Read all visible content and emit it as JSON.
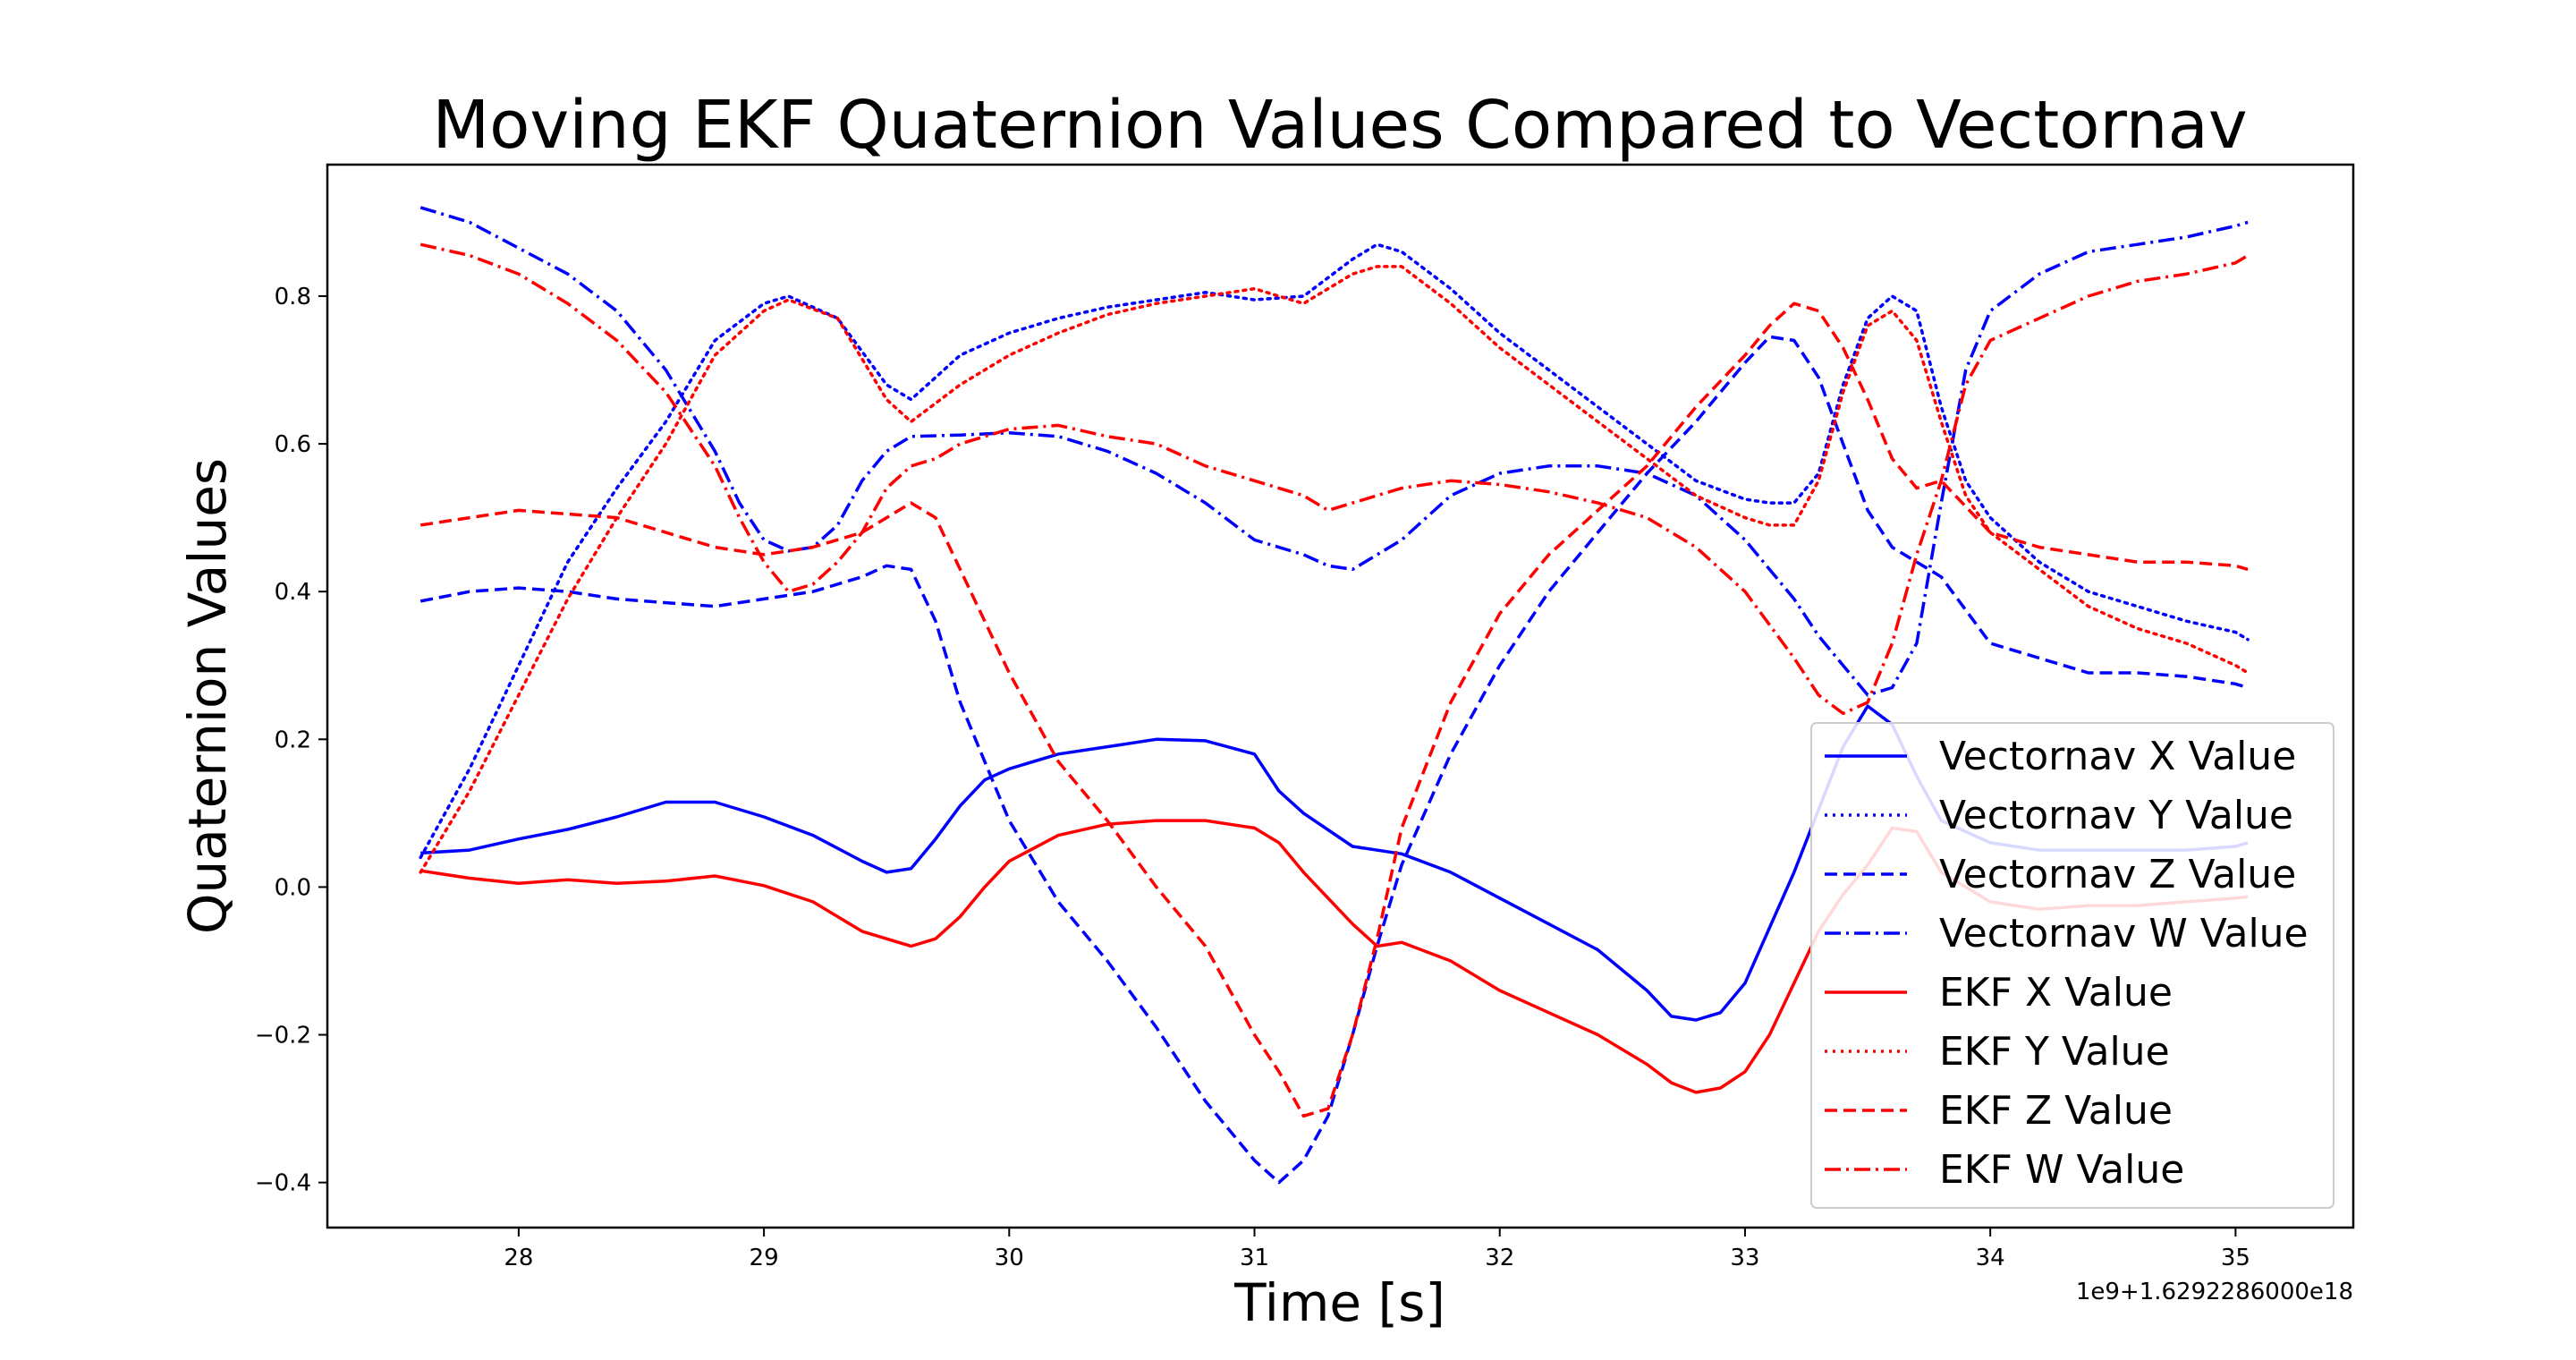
{
  "chart_data": {
    "type": "line",
    "title": "Moving EKF Quaternion Values Compared to Vectornav",
    "xlabel": "Time [s]",
    "ylabel": "Quaternion Values",
    "x_offset_label": "1e9+1.6292286000e18",
    "xlim": [
      27.22,
      35.48
    ],
    "ylim": [
      -0.461,
      0.978
    ],
    "xticks": [
      28,
      29,
      30,
      31,
      32,
      33,
      34,
      35
    ],
    "xtick_labels": [
      "28",
      "29",
      "30",
      "31",
      "32",
      "33",
      "34",
      "35"
    ],
    "yticks": [
      -0.4,
      -0.2,
      0.0,
      0.2,
      0.4,
      0.6,
      0.8
    ],
    "ytick_labels": [
      "−0.4",
      "−0.2",
      "0.0",
      "0.2",
      "0.4",
      "0.6",
      "0.8"
    ],
    "grid": false,
    "legend_position": "lower-right",
    "series": [
      {
        "name": "Vectornav X Value",
        "color": "#0000ff",
        "style": "solid",
        "x": [
          27.6,
          27.8,
          28.0,
          28.2,
          28.4,
          28.6,
          28.8,
          29.0,
          29.2,
          29.4,
          29.5,
          29.6,
          29.7,
          29.8,
          29.9,
          30.0,
          30.2,
          30.4,
          30.6,
          30.8,
          31.0,
          31.1,
          31.2,
          31.4,
          31.6,
          31.8,
          32.0,
          32.2,
          32.4,
          32.6,
          32.7,
          32.8,
          32.9,
          33.0,
          33.2,
          33.4,
          33.5,
          33.6,
          33.7,
          33.8,
          34.0,
          34.2,
          34.4,
          34.6,
          34.8,
          35.0,
          35.05
        ],
        "y": [
          0.046,
          0.05,
          0.065,
          0.078,
          0.095,
          0.115,
          0.115,
          0.095,
          0.07,
          0.035,
          0.02,
          0.025,
          0.065,
          0.11,
          0.145,
          0.16,
          0.18,
          0.19,
          0.2,
          0.198,
          0.18,
          0.13,
          0.1,
          0.055,
          0.045,
          0.02,
          -0.015,
          -0.05,
          -0.085,
          -0.14,
          -0.175,
          -0.18,
          -0.17,
          -0.13,
          0.02,
          0.19,
          0.245,
          0.22,
          0.15,
          0.09,
          0.06,
          0.05,
          0.05,
          0.05,
          0.05,
          0.055,
          0.06
        ]
      },
      {
        "name": "Vectornav Y Value",
        "color": "#0000ff",
        "style": "dotted",
        "x": [
          27.6,
          27.8,
          28.0,
          28.2,
          28.4,
          28.6,
          28.8,
          29.0,
          29.1,
          29.3,
          29.5,
          29.6,
          29.8,
          30.0,
          30.2,
          30.4,
          30.6,
          30.8,
          31.0,
          31.2,
          31.4,
          31.5,
          31.6,
          31.8,
          32.0,
          32.2,
          32.4,
          32.6,
          32.8,
          33.0,
          33.1,
          33.2,
          33.3,
          33.4,
          33.5,
          33.6,
          33.7,
          33.8,
          33.9,
          34.0,
          34.2,
          34.4,
          34.6,
          34.8,
          35.0,
          35.05
        ],
        "y": [
          0.04,
          0.16,
          0.3,
          0.44,
          0.54,
          0.63,
          0.74,
          0.79,
          0.8,
          0.77,
          0.68,
          0.66,
          0.72,
          0.75,
          0.77,
          0.785,
          0.795,
          0.805,
          0.795,
          0.8,
          0.85,
          0.87,
          0.86,
          0.81,
          0.75,
          0.7,
          0.65,
          0.6,
          0.55,
          0.525,
          0.52,
          0.52,
          0.56,
          0.68,
          0.77,
          0.8,
          0.78,
          0.65,
          0.55,
          0.5,
          0.44,
          0.4,
          0.38,
          0.36,
          0.345,
          0.335
        ]
      },
      {
        "name": "Vectornav Z Value",
        "color": "#0000ff",
        "style": "dashed",
        "x": [
          27.6,
          27.8,
          28.0,
          28.2,
          28.4,
          28.6,
          28.8,
          29.0,
          29.2,
          29.4,
          29.5,
          29.6,
          29.7,
          29.8,
          30.0,
          30.2,
          30.4,
          30.6,
          30.8,
          31.0,
          31.1,
          31.2,
          31.3,
          31.4,
          31.5,
          31.6,
          31.8,
          32.0,
          32.2,
          32.4,
          32.6,
          32.8,
          33.0,
          33.1,
          33.2,
          33.3,
          33.4,
          33.5,
          33.6,
          33.8,
          34.0,
          34.2,
          34.4,
          34.6,
          34.8,
          35.0,
          35.05
        ],
        "y": [
          0.387,
          0.4,
          0.405,
          0.4,
          0.39,
          0.385,
          0.38,
          0.39,
          0.4,
          0.42,
          0.435,
          0.43,
          0.36,
          0.25,
          0.09,
          -0.02,
          -0.1,
          -0.19,
          -0.29,
          -0.37,
          -0.4,
          -0.37,
          -0.31,
          -0.2,
          -0.08,
          0.03,
          0.18,
          0.3,
          0.4,
          0.48,
          0.56,
          0.63,
          0.71,
          0.745,
          0.74,
          0.69,
          0.6,
          0.51,
          0.46,
          0.42,
          0.33,
          0.31,
          0.29,
          0.29,
          0.285,
          0.275,
          0.27
        ]
      },
      {
        "name": "Vectornav W Value",
        "color": "#0000ff",
        "style": "dashdot",
        "x": [
          27.6,
          27.8,
          28.0,
          28.2,
          28.4,
          28.6,
          28.8,
          28.9,
          29.0,
          29.1,
          29.2,
          29.3,
          29.4,
          29.5,
          29.6,
          29.8,
          30.0,
          30.2,
          30.4,
          30.6,
          30.8,
          31.0,
          31.2,
          31.3,
          31.4,
          31.6,
          31.8,
          32.0,
          32.2,
          32.4,
          32.6,
          32.8,
          33.0,
          33.2,
          33.3,
          33.4,
          33.5,
          33.6,
          33.7,
          33.8,
          33.9,
          34.0,
          34.2,
          34.4,
          34.6,
          34.8,
          35.0,
          35.05
        ],
        "y": [
          0.92,
          0.9,
          0.865,
          0.83,
          0.78,
          0.7,
          0.59,
          0.52,
          0.47,
          0.455,
          0.46,
          0.49,
          0.55,
          0.59,
          0.61,
          0.612,
          0.615,
          0.61,
          0.59,
          0.56,
          0.52,
          0.47,
          0.45,
          0.435,
          0.43,
          0.47,
          0.53,
          0.56,
          0.57,
          0.57,
          0.56,
          0.53,
          0.47,
          0.39,
          0.34,
          0.3,
          0.26,
          0.27,
          0.33,
          0.52,
          0.7,
          0.78,
          0.83,
          0.86,
          0.87,
          0.88,
          0.895,
          0.9
        ]
      },
      {
        "name": "EKF X Value",
        "color": "#ff0000",
        "style": "solid",
        "x": [
          27.6,
          27.8,
          28.0,
          28.2,
          28.4,
          28.6,
          28.8,
          29.0,
          29.2,
          29.4,
          29.5,
          29.6,
          29.7,
          29.8,
          29.9,
          30.0,
          30.2,
          30.4,
          30.6,
          30.8,
          31.0,
          31.1,
          31.2,
          31.4,
          31.5,
          31.6,
          31.8,
          32.0,
          32.2,
          32.4,
          32.6,
          32.7,
          32.8,
          32.9,
          33.0,
          33.1,
          33.2,
          33.3,
          33.4,
          33.5,
          33.6,
          33.7,
          33.8,
          34.0,
          34.2,
          34.4,
          34.6,
          34.8,
          35.0,
          35.05
        ],
        "y": [
          0.022,
          0.012,
          0.005,
          0.01,
          0.005,
          0.008,
          0.015,
          0.002,
          -0.02,
          -0.06,
          -0.07,
          -0.08,
          -0.07,
          -0.04,
          0.0,
          0.035,
          0.07,
          0.085,
          0.09,
          0.09,
          0.08,
          0.06,
          0.02,
          -0.05,
          -0.08,
          -0.075,
          -0.1,
          -0.14,
          -0.17,
          -0.2,
          -0.24,
          -0.265,
          -0.278,
          -0.272,
          -0.25,
          -0.2,
          -0.13,
          -0.06,
          -0.01,
          0.03,
          0.08,
          0.075,
          0.02,
          -0.02,
          -0.03,
          -0.025,
          -0.025,
          -0.02,
          -0.015,
          -0.013
        ]
      },
      {
        "name": "EKF Y Value",
        "color": "#ff0000",
        "style": "dotted",
        "x": [
          27.6,
          27.8,
          28.0,
          28.2,
          28.4,
          28.6,
          28.8,
          29.0,
          29.1,
          29.3,
          29.5,
          29.6,
          29.8,
          30.0,
          30.2,
          30.4,
          30.6,
          30.8,
          31.0,
          31.1,
          31.2,
          31.4,
          31.5,
          31.6,
          31.8,
          32.0,
          32.2,
          32.4,
          32.6,
          32.8,
          33.0,
          33.1,
          33.2,
          33.3,
          33.4,
          33.5,
          33.6,
          33.7,
          33.8,
          33.9,
          34.0,
          34.2,
          34.4,
          34.6,
          34.8,
          35.0,
          35.05
        ],
        "y": [
          0.02,
          0.13,
          0.26,
          0.39,
          0.5,
          0.6,
          0.72,
          0.78,
          0.795,
          0.77,
          0.66,
          0.63,
          0.68,
          0.72,
          0.75,
          0.775,
          0.79,
          0.8,
          0.81,
          0.8,
          0.79,
          0.83,
          0.84,
          0.84,
          0.79,
          0.73,
          0.68,
          0.63,
          0.58,
          0.53,
          0.5,
          0.49,
          0.49,
          0.55,
          0.67,
          0.76,
          0.78,
          0.74,
          0.63,
          0.53,
          0.48,
          0.43,
          0.38,
          0.35,
          0.33,
          0.3,
          0.29
        ]
      },
      {
        "name": "EKF Z Value",
        "color": "#ff0000",
        "style": "dashed",
        "x": [
          27.6,
          27.8,
          28.0,
          28.2,
          28.4,
          28.6,
          28.8,
          29.0,
          29.2,
          29.4,
          29.5,
          29.6,
          29.7,
          29.8,
          30.0,
          30.2,
          30.4,
          30.6,
          30.8,
          31.0,
          31.1,
          31.2,
          31.3,
          31.4,
          31.5,
          31.6,
          31.8,
          32.0,
          32.2,
          32.4,
          32.6,
          32.8,
          33.0,
          33.1,
          33.2,
          33.3,
          33.4,
          33.5,
          33.6,
          33.7,
          33.8,
          34.0,
          34.2,
          34.4,
          34.6,
          34.8,
          35.0,
          35.05
        ],
        "y": [
          0.49,
          0.5,
          0.51,
          0.505,
          0.5,
          0.48,
          0.46,
          0.45,
          0.46,
          0.48,
          0.5,
          0.52,
          0.5,
          0.43,
          0.29,
          0.17,
          0.09,
          0.0,
          -0.08,
          -0.2,
          -0.25,
          -0.31,
          -0.3,
          -0.2,
          -0.07,
          0.08,
          0.25,
          0.37,
          0.45,
          0.51,
          0.57,
          0.65,
          0.72,
          0.76,
          0.79,
          0.78,
          0.73,
          0.66,
          0.58,
          0.54,
          0.55,
          0.48,
          0.46,
          0.45,
          0.44,
          0.44,
          0.435,
          0.43
        ]
      },
      {
        "name": "EKF W Value",
        "color": "#ff0000",
        "style": "dashdot",
        "x": [
          27.6,
          27.8,
          28.0,
          28.2,
          28.4,
          28.6,
          28.8,
          28.9,
          29.0,
          29.1,
          29.2,
          29.3,
          29.4,
          29.5,
          29.6,
          29.7,
          29.8,
          30.0,
          30.2,
          30.4,
          30.6,
          30.8,
          31.0,
          31.2,
          31.3,
          31.4,
          31.6,
          31.8,
          32.0,
          32.2,
          32.4,
          32.6,
          32.8,
          33.0,
          33.2,
          33.3,
          33.4,
          33.5,
          33.6,
          33.7,
          33.8,
          33.9,
          34.0,
          34.2,
          34.4,
          34.6,
          34.8,
          35.0,
          35.05
        ],
        "y": [
          0.87,
          0.855,
          0.83,
          0.79,
          0.74,
          0.67,
          0.57,
          0.5,
          0.44,
          0.4,
          0.41,
          0.44,
          0.48,
          0.54,
          0.57,
          0.58,
          0.6,
          0.62,
          0.625,
          0.61,
          0.6,
          0.57,
          0.55,
          0.53,
          0.51,
          0.52,
          0.54,
          0.55,
          0.545,
          0.535,
          0.52,
          0.5,
          0.46,
          0.4,
          0.31,
          0.26,
          0.235,
          0.25,
          0.33,
          0.45,
          0.55,
          0.68,
          0.74,
          0.77,
          0.8,
          0.82,
          0.83,
          0.845,
          0.855
        ]
      }
    ]
  }
}
